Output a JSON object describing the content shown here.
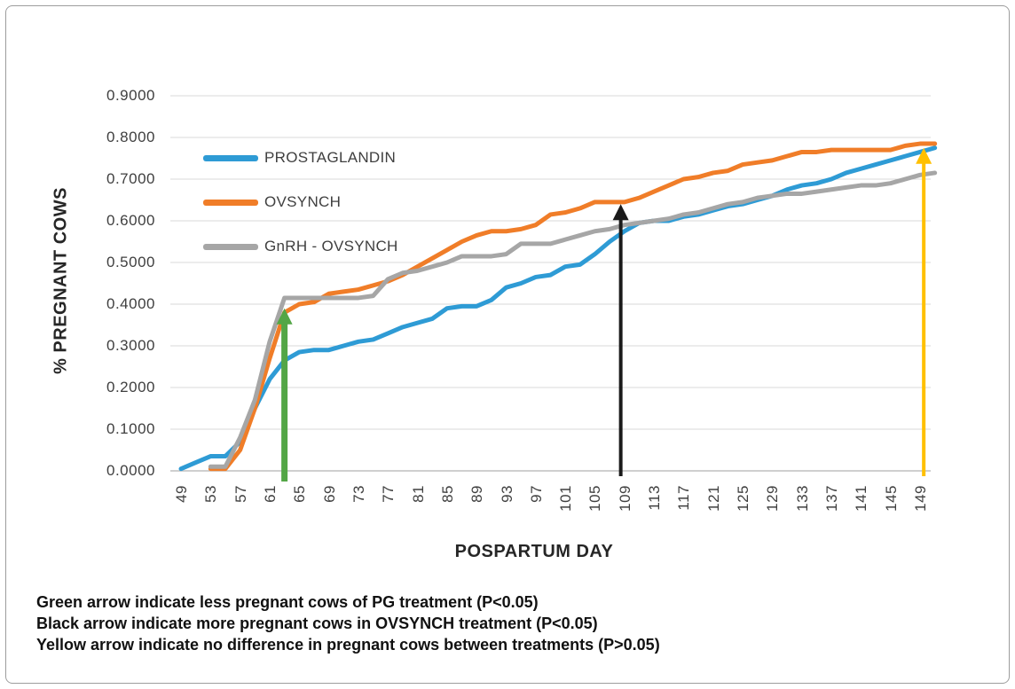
{
  "colors": {
    "grid": "#d9d9d9",
    "axis_line": "#bfbfbf",
    "tick_text": "#3f3f3f",
    "title_text": "#262626",
    "background": "#ffffff",
    "frame_border": "#9d9d9d"
  },
  "chart_data": {
    "type": "line",
    "title": "",
    "xlabel": "POSPARTUM DAY",
    "ylabel": "% PREGNANT COWS",
    "grid": "horizontal",
    "legend_position": "inside-top-left",
    "ylim": [
      0.0,
      0.9
    ],
    "y_ticks": [
      "0.0000",
      "0.1000",
      "0.2000",
      "0.3000",
      "0.4000",
      "0.5000",
      "0.6000",
      "0.7000",
      "0.8000",
      "0.9000"
    ],
    "x_ticks": [
      49,
      53,
      57,
      61,
      65,
      69,
      73,
      77,
      81,
      85,
      89,
      93,
      97,
      101,
      105,
      109,
      113,
      117,
      121,
      125,
      129,
      133,
      137,
      141,
      145,
      149
    ],
    "x": [
      49,
      51,
      53,
      55,
      57,
      59,
      61,
      63,
      65,
      67,
      69,
      71,
      73,
      75,
      77,
      79,
      81,
      83,
      85,
      87,
      89,
      91,
      93,
      95,
      97,
      99,
      101,
      103,
      105,
      107,
      109,
      111,
      113,
      115,
      117,
      119,
      121,
      123,
      125,
      127,
      129,
      131,
      133,
      135,
      137,
      139,
      141,
      143,
      145,
      147,
      149,
      151
    ],
    "series": [
      {
        "name": "PROSTAGLANDIN",
        "color": "#2e9bd5",
        "values": [
          0.005,
          0.02,
          0.035,
          0.035,
          0.07,
          0.15,
          0.22,
          0.265,
          0.285,
          0.29,
          0.29,
          0.3,
          0.31,
          0.315,
          0.33,
          0.345,
          0.355,
          0.365,
          0.39,
          0.395,
          0.395,
          0.41,
          0.44,
          0.45,
          0.465,
          0.47,
          0.49,
          0.495,
          0.52,
          0.55,
          0.575,
          0.595,
          0.6,
          0.6,
          0.61,
          0.615,
          0.625,
          0.635,
          0.64,
          0.65,
          0.66,
          0.675,
          0.685,
          0.69,
          0.7,
          0.715,
          0.725,
          0.735,
          0.745,
          0.755,
          0.765,
          0.775
        ]
      },
      {
        "name": "OVSYNCH",
        "color": "#f07d28",
        "values": [
          null,
          null,
          0.005,
          0.005,
          0.05,
          0.15,
          0.27,
          0.38,
          0.4,
          0.405,
          0.425,
          0.43,
          0.435,
          0.445,
          0.455,
          0.47,
          0.49,
          0.51,
          0.53,
          0.55,
          0.565,
          0.575,
          0.575,
          0.58,
          0.59,
          0.615,
          0.62,
          0.63,
          0.645,
          0.645,
          0.645,
          0.655,
          0.67,
          0.685,
          0.7,
          0.705,
          0.715,
          0.72,
          0.735,
          0.74,
          0.745,
          0.755,
          0.765,
          0.765,
          0.77,
          0.77,
          0.77,
          0.77,
          0.77,
          0.78,
          0.785,
          0.785
        ]
      },
      {
        "name": "GnRH - OVSYNCH",
        "color": "#a6a6a6",
        "values": [
          null,
          null,
          0.01,
          0.01,
          0.08,
          0.17,
          0.31,
          0.415,
          0.415,
          0.415,
          0.415,
          0.415,
          0.415,
          0.42,
          0.46,
          0.475,
          0.48,
          0.49,
          0.5,
          0.515,
          0.515,
          0.515,
          0.52,
          0.545,
          0.545,
          0.545,
          0.555,
          0.565,
          0.575,
          0.58,
          0.59,
          0.595,
          0.6,
          0.605,
          0.615,
          0.62,
          0.63,
          0.64,
          0.645,
          0.655,
          0.66,
          0.665,
          0.665,
          0.67,
          0.675,
          0.68,
          0.685,
          0.685,
          0.69,
          0.7,
          0.71,
          0.715
        ]
      }
    ],
    "arrows": [
      {
        "name": "green-arrow",
        "color": "#53a646",
        "day": 63,
        "value_top": 0.39,
        "shaft_width": 7
      },
      {
        "name": "black-arrow",
        "color": "#1a1a1a",
        "day": 108.5,
        "value_top": 0.64,
        "shaft_width": 4
      },
      {
        "name": "yellow-arrow",
        "color": "#ffc000",
        "day": 149.5,
        "value_top": 0.775,
        "shaft_width": 4
      }
    ]
  },
  "footnotes": [
    "Green arrow indicate less pregnant cows of PG treatment (P<0.05)",
    "Black arrow indicate more pregnant cows in OVSYNCH treatment (P<0.05)",
    "Yellow arrow indicate no difference in pregnant cows between treatments (P>0.05)"
  ]
}
